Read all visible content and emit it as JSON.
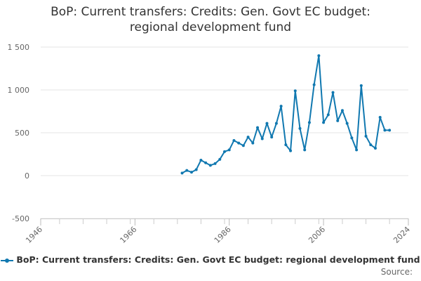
{
  "title_line1": "BoP: Current transfers: Credits: Gen. Govt EC budget:",
  "title_line2": "regional development fund",
  "source_label": "Source:",
  "accent_color": "#1078b0",
  "chart_data": {
    "type": "line",
    "title": "BoP: Current transfers: Credits: Gen. Govt EC budget: regional development fund",
    "xlabel": "",
    "ylabel": "",
    "xlim": [
      1946,
      2024
    ],
    "ylim": [
      -500,
      1500
    ],
    "x_ticks": [
      1946,
      1966,
      1986,
      2006,
      2024
    ],
    "y_ticks": [
      -500,
      0,
      500,
      1000,
      1500
    ],
    "y_tick_labels": [
      "-500",
      "0",
      "500",
      "1 000",
      "1 500"
    ],
    "grid": true,
    "legend_position": "bottom",
    "series": [
      {
        "name": "BoP: Current transfers: Credits: Gen. Govt EC budget: regional development fund",
        "x": [
          1976,
          1977,
          1978,
          1979,
          1980,
          1981,
          1982,
          1983,
          1984,
          1985,
          1986,
          1987,
          1988,
          1989,
          1990,
          1991,
          1992,
          1993,
          1994,
          1995,
          1996,
          1997,
          1998,
          1999,
          2000,
          2001,
          2002,
          2003,
          2004,
          2005,
          2006,
          2007,
          2008,
          2009,
          2010,
          2011,
          2012,
          2013,
          2014,
          2015,
          2016,
          2017,
          2018,
          2019,
          2020
        ],
        "values": [
          30,
          60,
          40,
          70,
          180,
          150,
          120,
          140,
          190,
          280,
          300,
          410,
          380,
          350,
          450,
          380,
          560,
          430,
          610,
          450,
          610,
          810,
          360,
          290,
          990,
          550,
          300,
          620,
          1060,
          1400,
          620,
          710,
          970,
          640,
          760,
          610,
          440,
          300,
          1050,
          460,
          360,
          320,
          680,
          530,
          530
        ]
      }
    ]
  }
}
